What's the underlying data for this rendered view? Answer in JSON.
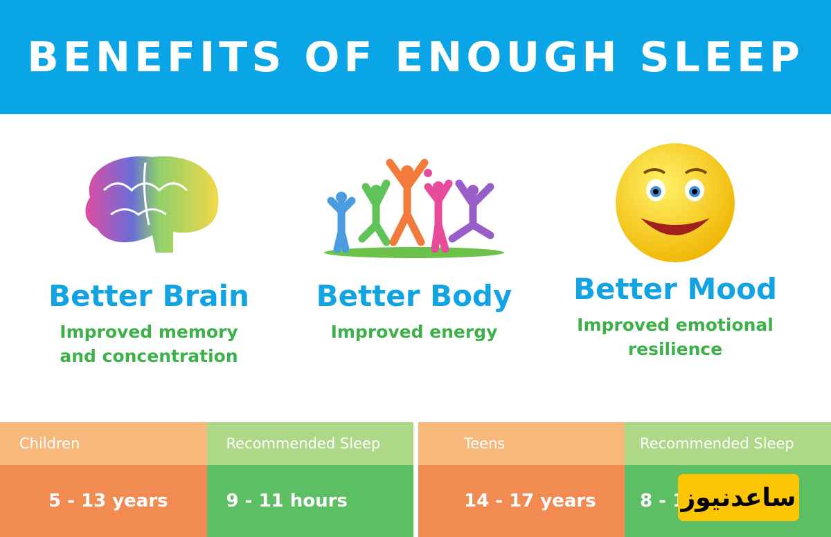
{
  "title": "BENEFITS OF ENOUGH SLEEP",
  "benefits": [
    {
      "icon": "brain-icon",
      "heading": "Better Brain",
      "lines": [
        "Improved memory",
        "and concentration"
      ]
    },
    {
      "icon": "jumping-people-icon",
      "heading": "Better Body",
      "lines": [
        "Improved energy"
      ]
    },
    {
      "icon": "smiley-face-icon",
      "heading": "Better Mood",
      "lines": [
        "Improved emotional",
        "resilience"
      ]
    }
  ],
  "tables": [
    {
      "group_header": "Children",
      "sleep_header": "Recommended Sleep",
      "age": "5 - 13 years",
      "sleep": "9 - 11 hours"
    },
    {
      "group_header": "Teens",
      "sleep_header": "Recommended Sleep",
      "age": "14 - 17 years",
      "sleep": "8 - 1"
    }
  ],
  "watermark": "ساعدنیوز",
  "colors": {
    "header": "#0aa5e6",
    "heading": "#12a3e3",
    "subtext": "#3db04a",
    "orange_light": "#f7b87c",
    "orange": "#f28b52",
    "green_light": "#add887",
    "green": "#5dbf63",
    "watermark": "#fcc605"
  }
}
